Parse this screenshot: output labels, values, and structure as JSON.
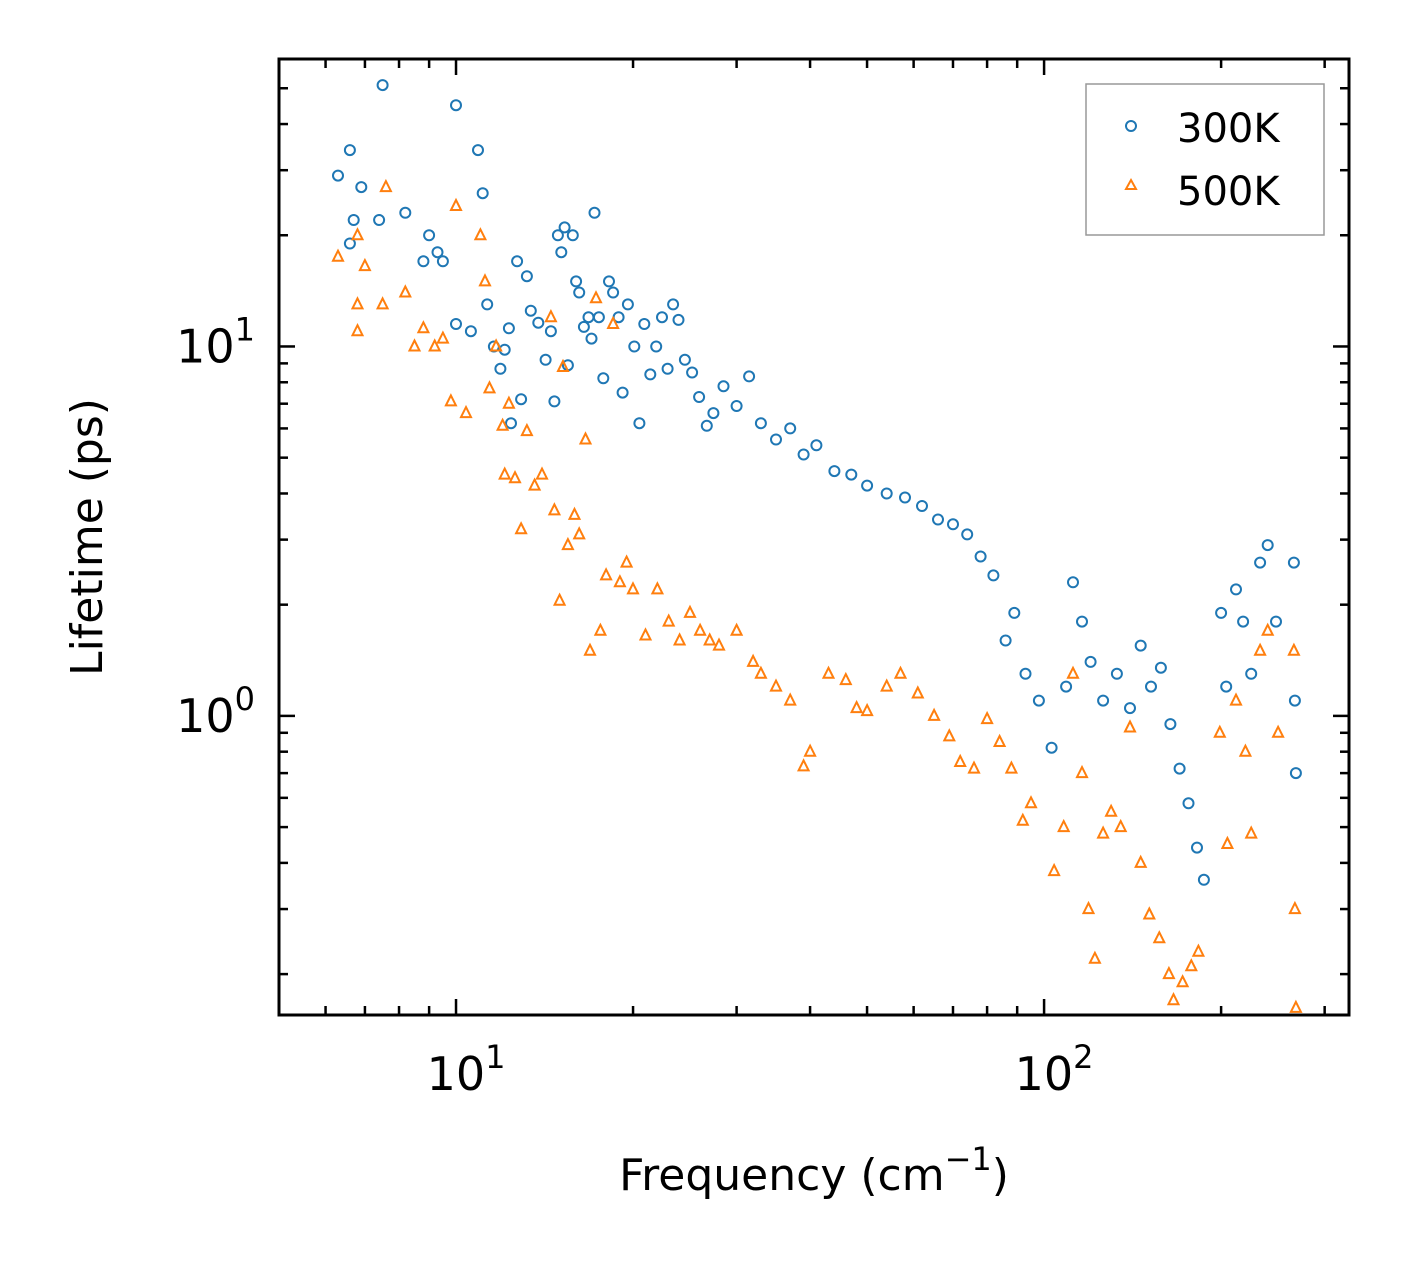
{
  "chart_data": {
    "type": "scatter",
    "xscale": "log",
    "yscale": "log",
    "xlim": [
      5,
      330
    ],
    "ylim": [
      0.155,
      60
    ],
    "xlabel": "Frequency (cm−1)",
    "xlabel_main": "Frequency (cm",
    "xlabel_sup": "−1",
    "xlabel_close": ")",
    "ylabel": "Lifetime (ps)",
    "x_ticks": [
      {
        "value": 10,
        "base": "10",
        "exp": "1"
      },
      {
        "value": 100,
        "base": "10",
        "exp": "2"
      }
    ],
    "y_ticks": [
      {
        "value": 1,
        "base": "10",
        "exp": "0"
      },
      {
        "value": 10,
        "base": "10",
        "exp": "1"
      }
    ],
    "legend_position": "top-right",
    "series": [
      {
        "name": "300K",
        "marker": "circle",
        "color": "#1f77b4",
        "points": [
          [
            6.3,
            29
          ],
          [
            6.6,
            19
          ],
          [
            6.6,
            34
          ],
          [
            6.7,
            22
          ],
          [
            6.9,
            27
          ],
          [
            7.4,
            22
          ],
          [
            7.5,
            51
          ],
          [
            8.2,
            23
          ],
          [
            8.8,
            17
          ],
          [
            9.0,
            20
          ],
          [
            9.3,
            18
          ],
          [
            9.5,
            17
          ],
          [
            10.0,
            45
          ],
          [
            10.0,
            11.5
          ],
          [
            10.6,
            11
          ],
          [
            10.9,
            34
          ],
          [
            11.1,
            26
          ],
          [
            11.3,
            13
          ],
          [
            11.6,
            10
          ],
          [
            11.9,
            8.7
          ],
          [
            12.1,
            9.8
          ],
          [
            12.3,
            11.2
          ],
          [
            12.4,
            6.2
          ],
          [
            12.7,
            17
          ],
          [
            12.9,
            7.2
          ],
          [
            13.2,
            15.5
          ],
          [
            13.4,
            12.5
          ],
          [
            13.8,
            11.6
          ],
          [
            14.2,
            9.2
          ],
          [
            14.5,
            11
          ],
          [
            14.7,
            7.1
          ],
          [
            14.9,
            20
          ],
          [
            15.1,
            18
          ],
          [
            15.3,
            21
          ],
          [
            15.5,
            8.9
          ],
          [
            15.8,
            20
          ],
          [
            16.0,
            15
          ],
          [
            16.2,
            14
          ],
          [
            16.5,
            11.3
          ],
          [
            16.8,
            12
          ],
          [
            17.0,
            10.5
          ],
          [
            17.2,
            23
          ],
          [
            17.5,
            12
          ],
          [
            17.8,
            8.2
          ],
          [
            18.2,
            15
          ],
          [
            18.5,
            14
          ],
          [
            18.9,
            12
          ],
          [
            19.2,
            7.5
          ],
          [
            19.6,
            13
          ],
          [
            20.1,
            10
          ],
          [
            20.5,
            6.2
          ],
          [
            20.9,
            11.5
          ],
          [
            21.4,
            8.4
          ],
          [
            21.9,
            10
          ],
          [
            22.4,
            12
          ],
          [
            22.9,
            8.7
          ],
          [
            23.4,
            13
          ],
          [
            23.9,
            11.8
          ],
          [
            24.5,
            9.2
          ],
          [
            25.2,
            8.5
          ],
          [
            25.9,
            7.3
          ],
          [
            26.7,
            6.1
          ],
          [
            27.4,
            6.6
          ],
          [
            28.5,
            7.8
          ],
          [
            30.0,
            6.9
          ],
          [
            31.5,
            8.3
          ],
          [
            33.0,
            6.2
          ],
          [
            35.0,
            5.6
          ],
          [
            37.0,
            6.0
          ],
          [
            39.0,
            5.1
          ],
          [
            41.0,
            5.4
          ],
          [
            44.0,
            4.6
          ],
          [
            47.0,
            4.5
          ],
          [
            50.0,
            4.2
          ],
          [
            54.0,
            4.0
          ],
          [
            58.0,
            3.9
          ],
          [
            62.0,
            3.7
          ],
          [
            66.0,
            3.4
          ],
          [
            70.0,
            3.3
          ],
          [
            74.0,
            3.1
          ],
          [
            78.0,
            2.7
          ],
          [
            82.0,
            2.4
          ],
          [
            86.0,
            1.6
          ],
          [
            89.0,
            1.9
          ],
          [
            93.0,
            1.3
          ],
          [
            98.0,
            1.1
          ],
          [
            103.0,
            0.82
          ],
          [
            109.0,
            1.2
          ],
          [
            112.0,
            2.3
          ],
          [
            116.0,
            1.8
          ],
          [
            120.0,
            1.4
          ],
          [
            126.0,
            1.1
          ],
          [
            133.0,
            1.3
          ],
          [
            140.0,
            1.05
          ],
          [
            146.0,
            1.55
          ],
          [
            152.0,
            1.2
          ],
          [
            158.0,
            1.35
          ],
          [
            164.0,
            0.95
          ],
          [
            170.0,
            0.72
          ],
          [
            176.0,
            0.58
          ],
          [
            182.0,
            0.44
          ],
          [
            187.0,
            0.36
          ],
          [
            200.0,
            1.9
          ],
          [
            204.0,
            1.2
          ],
          [
            212.0,
            2.2
          ],
          [
            218.0,
            1.8
          ],
          [
            225.0,
            1.3
          ],
          [
            233.0,
            2.6
          ],
          [
            240.0,
            2.9
          ],
          [
            248.0,
            1.8
          ],
          [
            266.0,
            2.6
          ],
          [
            267.0,
            1.1
          ],
          [
            268.0,
            0.7
          ]
        ]
      },
      {
        "name": "500K",
        "marker": "triangle",
        "color": "#ff7f0e",
        "points": [
          [
            6.3,
            17.5
          ],
          [
            6.8,
            11
          ],
          [
            6.8,
            20
          ],
          [
            6.8,
            13
          ],
          [
            7.0,
            16.5
          ],
          [
            7.5,
            13
          ],
          [
            7.6,
            27
          ],
          [
            8.2,
            14
          ],
          [
            8.5,
            10
          ],
          [
            8.8,
            11.2
          ],
          [
            9.2,
            10
          ],
          [
            9.5,
            10.5
          ],
          [
            9.8,
            7.1
          ],
          [
            10.0,
            24
          ],
          [
            10.4,
            6.6
          ],
          [
            11.0,
            20
          ],
          [
            11.2,
            15
          ],
          [
            11.4,
            7.7
          ],
          [
            11.7,
            10
          ],
          [
            12.0,
            6.1
          ],
          [
            12.1,
            4.5
          ],
          [
            12.3,
            7.0
          ],
          [
            12.6,
            4.4
          ],
          [
            12.9,
            3.2
          ],
          [
            13.2,
            5.9
          ],
          [
            13.6,
            4.2
          ],
          [
            14.0,
            4.5
          ],
          [
            14.5,
            12
          ],
          [
            14.7,
            3.6
          ],
          [
            15.0,
            2.05
          ],
          [
            15.2,
            8.8
          ],
          [
            15.5,
            2.9
          ],
          [
            15.9,
            3.5
          ],
          [
            16.2,
            3.1
          ],
          [
            16.6,
            5.6
          ],
          [
            16.9,
            1.5
          ],
          [
            17.3,
            13.5
          ],
          [
            17.6,
            1.7
          ],
          [
            18.0,
            2.4
          ],
          [
            18.5,
            11.5
          ],
          [
            19.0,
            2.3
          ],
          [
            19.5,
            2.6
          ],
          [
            20.0,
            2.2
          ],
          [
            21.0,
            1.65
          ],
          [
            22.0,
            2.2
          ],
          [
            23.0,
            1.8
          ],
          [
            24.0,
            1.6
          ],
          [
            25.0,
            1.9
          ],
          [
            26.0,
            1.7
          ],
          [
            27.0,
            1.6
          ],
          [
            28.0,
            1.55
          ],
          [
            30.0,
            1.7
          ],
          [
            32.0,
            1.4
          ],
          [
            33.0,
            1.3
          ],
          [
            35.0,
            1.2
          ],
          [
            37.0,
            1.1
          ],
          [
            39.0,
            0.73
          ],
          [
            40.0,
            0.8
          ],
          [
            43.0,
            1.3
          ],
          [
            46.0,
            1.25
          ],
          [
            48.0,
            1.05
          ],
          [
            50.0,
            1.03
          ],
          [
            54.0,
            1.2
          ],
          [
            57.0,
            1.3
          ],
          [
            61.0,
            1.15
          ],
          [
            65.0,
            1.0
          ],
          [
            69.0,
            0.88
          ],
          [
            72.0,
            0.75
          ],
          [
            76.0,
            0.72
          ],
          [
            80.0,
            0.98
          ],
          [
            84.0,
            0.85
          ],
          [
            88.0,
            0.72
          ],
          [
            92.0,
            0.52
          ],
          [
            95.0,
            0.58
          ],
          [
            104.0,
            0.38
          ],
          [
            108.0,
            0.5
          ],
          [
            112.0,
            1.3
          ],
          [
            116.0,
            0.7
          ],
          [
            119.0,
            0.3
          ],
          [
            122.0,
            0.22
          ],
          [
            126.0,
            0.48
          ],
          [
            130.0,
            0.55
          ],
          [
            135.0,
            0.5
          ],
          [
            140.0,
            0.93
          ],
          [
            146.0,
            0.4
          ],
          [
            151.0,
            0.29
          ],
          [
            157.0,
            0.25
          ],
          [
            163.0,
            0.2
          ],
          [
            166.0,
            0.17
          ],
          [
            172.0,
            0.19
          ],
          [
            178.0,
            0.21
          ],
          [
            183.0,
            0.23
          ],
          [
            199.0,
            0.9
          ],
          [
            205.0,
            0.45
          ],
          [
            212.0,
            1.1
          ],
          [
            220.0,
            0.8
          ],
          [
            225.0,
            0.48
          ],
          [
            233.0,
            1.5
          ],
          [
            240.0,
            1.7
          ],
          [
            250.0,
            0.9
          ],
          [
            266.0,
            1.5
          ],
          [
            267.0,
            0.3
          ],
          [
            268.0,
            0.162
          ]
        ]
      }
    ]
  }
}
